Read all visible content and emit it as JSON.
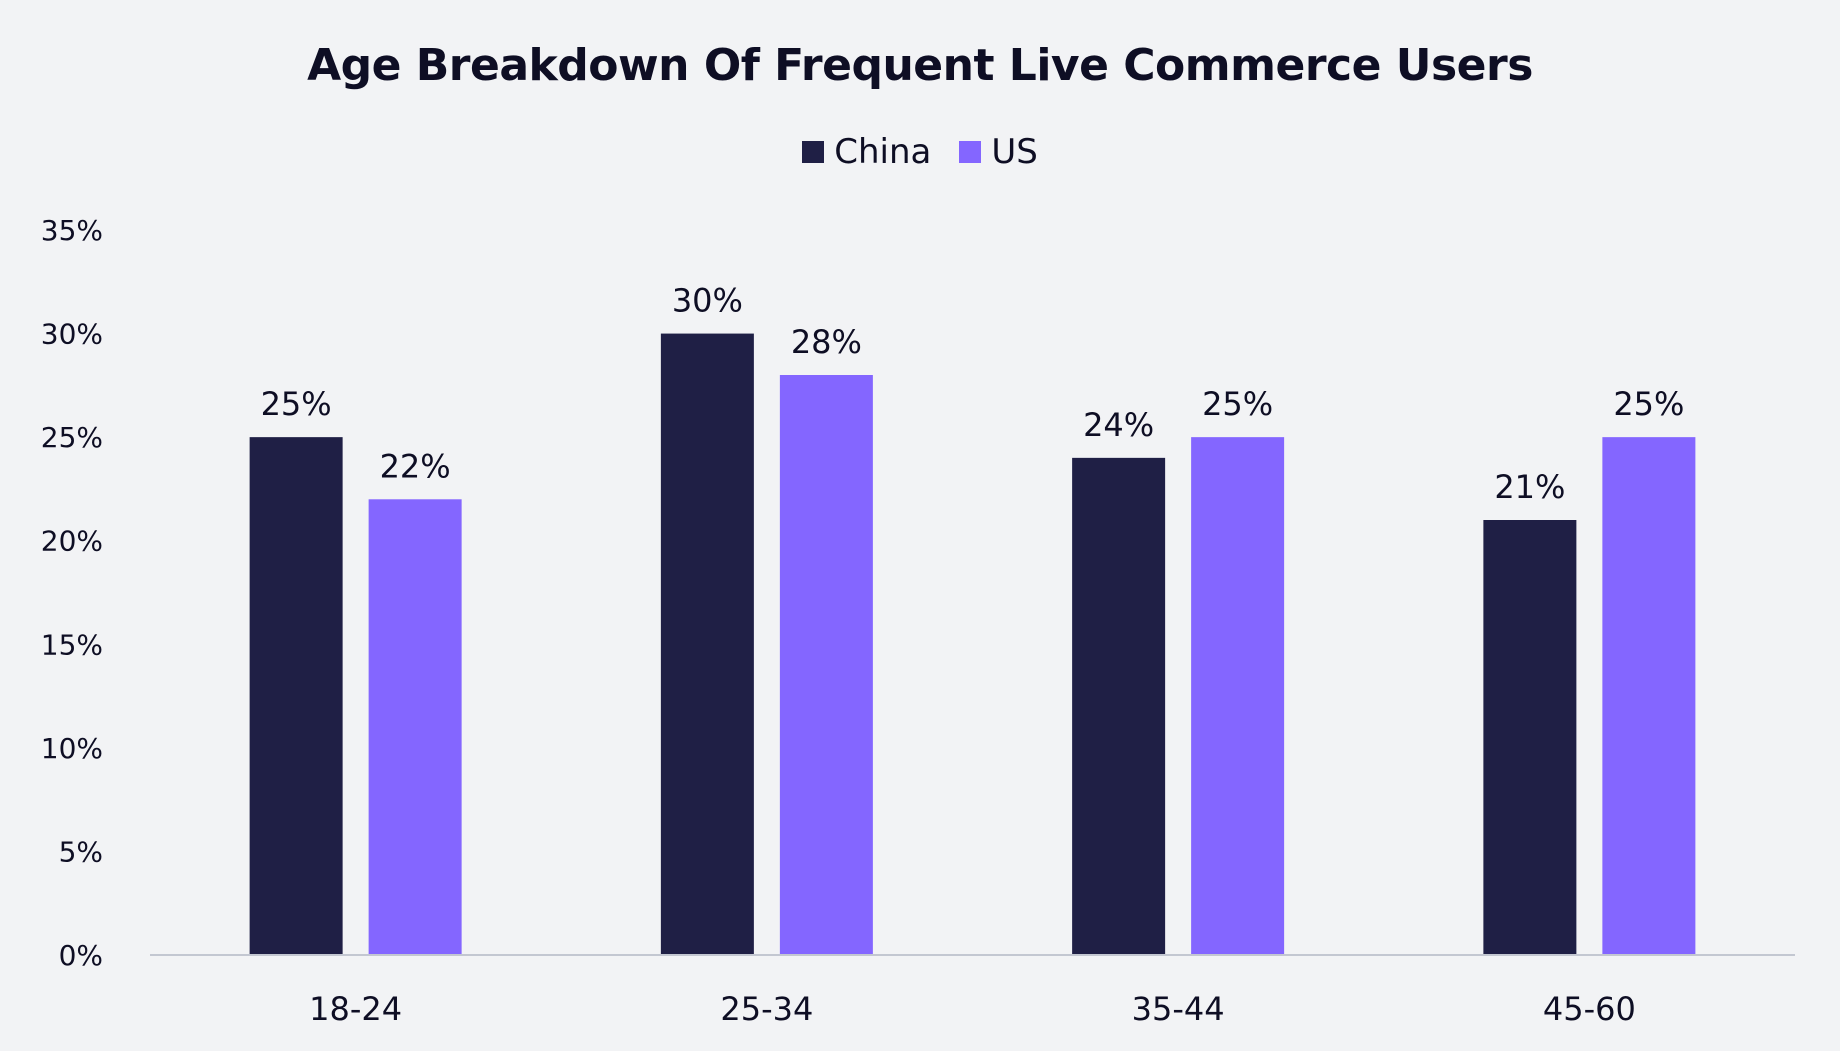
{
  "chart_data": {
    "type": "bar",
    "title": "Age Breakdown Of Frequent Live Commerce Users",
    "xlabel": "",
    "ylabel": "",
    "categories": [
      "18-24",
      "25-34",
      "35-44",
      "45-60"
    ],
    "series": [
      {
        "name": "China",
        "color": "#1f1f45",
        "values": [
          25,
          30,
          24,
          21
        ],
        "labels": [
          "25%",
          "30%",
          "24%",
          "21%"
        ]
      },
      {
        "name": "US",
        "color": "#8466ff",
        "values": [
          22,
          28,
          25,
          25
        ],
        "labels": [
          "22%",
          "28%",
          "25%",
          "25%"
        ]
      }
    ],
    "ylim": [
      0,
      35
    ],
    "yticks": [
      0,
      5,
      10,
      15,
      20,
      25,
      30,
      35
    ],
    "ytick_labels": [
      "0%",
      "5%",
      "10%",
      "15%",
      "20%",
      "25%",
      "30%",
      "35%"
    ],
    "grid": false,
    "legend": "top-center",
    "axis_color": "#c3c7d1"
  }
}
